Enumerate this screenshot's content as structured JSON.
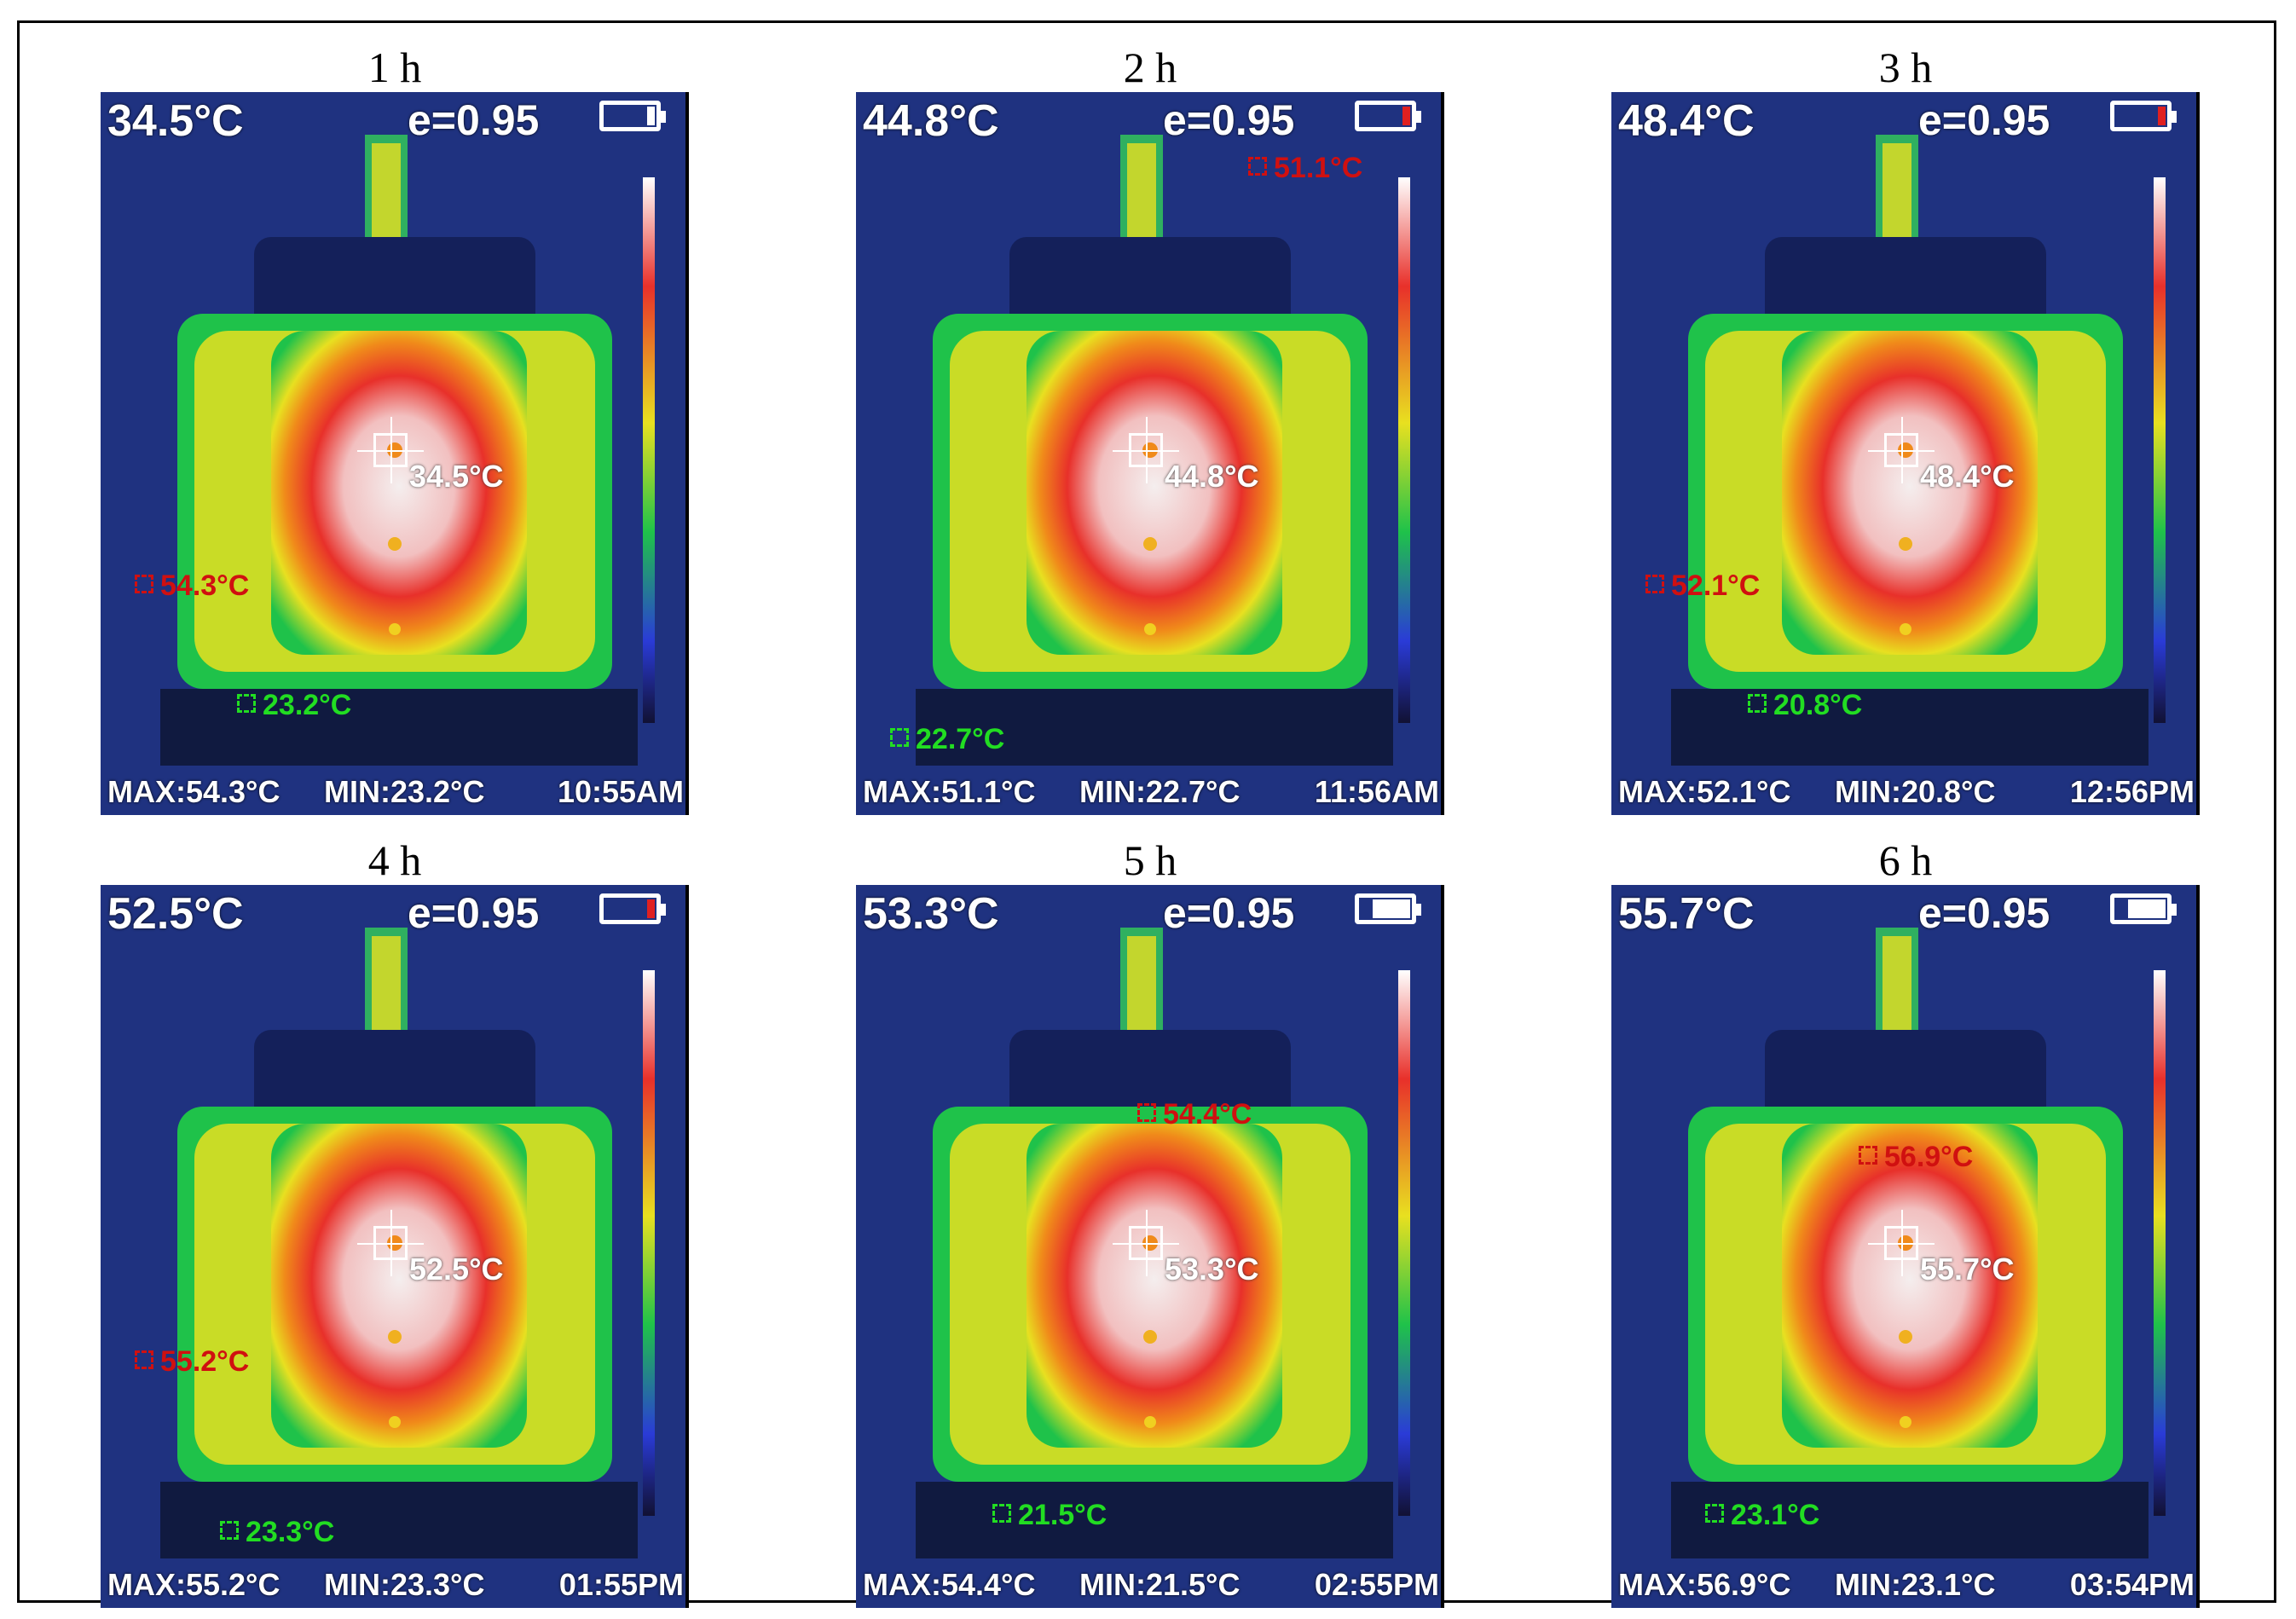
{
  "panels": [
    {
      "title": "1 h",
      "center": "34.5°C",
      "emissivity": "e=0.95",
      "center_label": "34.5°C",
      "hot_label": "54.3°C",
      "cold_label": "23.2°C",
      "max": "MAX:54.3°C",
      "min": "MIN:23.2°C",
      "time": "10:55AM",
      "battery_level": 0.15,
      "battery_color": "#ffffff"
    },
    {
      "title": "2 h",
      "center": "44.8°C",
      "emissivity": "e=0.95",
      "center_label": "44.8°C",
      "hot_label": "51.1°C",
      "cold_label": "22.7°C",
      "max": "MAX:51.1°C",
      "min": "MIN:22.7°C",
      "time": "11:56AM",
      "battery_level": 0.15,
      "battery_color": "#e02020"
    },
    {
      "title": "3 h",
      "center": "48.4°C",
      "emissivity": "e=0.95",
      "center_label": "48.4°C",
      "hot_label": "52.1°C",
      "cold_label": "20.8°C",
      "max": "MAX:52.1°C",
      "min": "MIN:20.8°C",
      "time": "12:56PM",
      "battery_level": 0.15,
      "battery_color": "#e02020"
    },
    {
      "title": "4 h",
      "center": "52.5°C",
      "emissivity": "e=0.95",
      "center_label": "52.5°C",
      "hot_label": "55.2°C",
      "cold_label": "23.3°C",
      "max": "MAX:55.2°C",
      "min": "MIN:23.3°C",
      "time": "01:55PM",
      "battery_level": 0.15,
      "battery_color": "#e02020"
    },
    {
      "title": "5 h",
      "center": "53.3°C",
      "emissivity": "e=0.95",
      "center_label": "53.3°C",
      "hot_label": "54.4°C",
      "cold_label": "21.5°C",
      "max": "MAX:54.4°C",
      "min": "MIN:21.5°C",
      "time": "02:55PM",
      "battery_level": 0.75,
      "battery_color": "#ffffff"
    },
    {
      "title": "6 h",
      "center": "55.7°C",
      "emissivity": "e=0.95",
      "center_label": "55.7°C",
      "hot_label": "56.9°C",
      "cold_label": "23.1°C",
      "max": "MAX:56.9°C",
      "min": "MIN:23.1°C",
      "time": "03:54PM",
      "battery_level": 0.75,
      "battery_color": "#ffffff"
    }
  ],
  "palette": {
    "cold": "#1a2a6c",
    "blue": "#2a5bd7",
    "cyan": "#1fb7c8",
    "green": "#1fc24a",
    "yellow": "#e8e020",
    "orange": "#f08a1a",
    "red": "#e8302a",
    "white": "#f4eeee"
  }
}
